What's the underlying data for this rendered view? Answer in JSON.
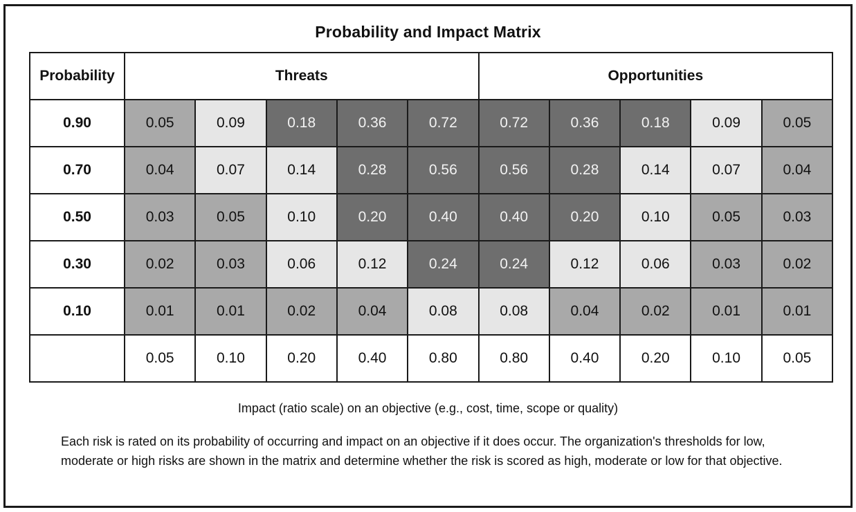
{
  "title": "Probability and Impact Matrix",
  "headers": {
    "probability": "Probability",
    "threats": "Threats",
    "opportunities": "Opportunities"
  },
  "rows": [
    {
      "probability": "0.90",
      "cells": [
        {
          "v": "0.05",
          "level": "moderate"
        },
        {
          "v": "0.09",
          "level": "low"
        },
        {
          "v": "0.18",
          "level": "high"
        },
        {
          "v": "0.36",
          "level": "high"
        },
        {
          "v": "0.72",
          "level": "high"
        },
        {
          "v": "0.72",
          "level": "high"
        },
        {
          "v": "0.36",
          "level": "high"
        },
        {
          "v": "0.18",
          "level": "high"
        },
        {
          "v": "0.09",
          "level": "low"
        },
        {
          "v": "0.05",
          "level": "moderate"
        }
      ]
    },
    {
      "probability": "0.70",
      "cells": [
        {
          "v": "0.04",
          "level": "moderate"
        },
        {
          "v": "0.07",
          "level": "low"
        },
        {
          "v": "0.14",
          "level": "low"
        },
        {
          "v": "0.28",
          "level": "high"
        },
        {
          "v": "0.56",
          "level": "high"
        },
        {
          "v": "0.56",
          "level": "high"
        },
        {
          "v": "0.28",
          "level": "high"
        },
        {
          "v": "0.14",
          "level": "low"
        },
        {
          "v": "0.07",
          "level": "low"
        },
        {
          "v": "0.04",
          "level": "moderate"
        }
      ]
    },
    {
      "probability": "0.50",
      "cells": [
        {
          "v": "0.03",
          "level": "moderate"
        },
        {
          "v": "0.05",
          "level": "moderate"
        },
        {
          "v": "0.10",
          "level": "low"
        },
        {
          "v": "0.20",
          "level": "high"
        },
        {
          "v": "0.40",
          "level": "high"
        },
        {
          "v": "0.40",
          "level": "high"
        },
        {
          "v": "0.20",
          "level": "high"
        },
        {
          "v": "0.10",
          "level": "low"
        },
        {
          "v": "0.05",
          "level": "moderate"
        },
        {
          "v": "0.03",
          "level": "moderate"
        }
      ]
    },
    {
      "probability": "0.30",
      "cells": [
        {
          "v": "0.02",
          "level": "moderate"
        },
        {
          "v": "0.03",
          "level": "moderate"
        },
        {
          "v": "0.06",
          "level": "low"
        },
        {
          "v": "0.12",
          "level": "low"
        },
        {
          "v": "0.24",
          "level": "high"
        },
        {
          "v": "0.24",
          "level": "high"
        },
        {
          "v": "0.12",
          "level": "low"
        },
        {
          "v": "0.06",
          "level": "low"
        },
        {
          "v": "0.03",
          "level": "moderate"
        },
        {
          "v": "0.02",
          "level": "moderate"
        }
      ]
    },
    {
      "probability": "0.10",
      "cells": [
        {
          "v": "0.01",
          "level": "moderate"
        },
        {
          "v": "0.01",
          "level": "moderate"
        },
        {
          "v": "0.02",
          "level": "moderate"
        },
        {
          "v": "0.04",
          "level": "moderate"
        },
        {
          "v": "0.08",
          "level": "low"
        },
        {
          "v": "0.08",
          "level": "low"
        },
        {
          "v": "0.04",
          "level": "moderate"
        },
        {
          "v": "0.02",
          "level": "moderate"
        },
        {
          "v": "0.01",
          "level": "moderate"
        },
        {
          "v": "0.01",
          "level": "moderate"
        }
      ]
    }
  ],
  "impact_values": [
    "0.05",
    "0.10",
    "0.20",
    "0.40",
    "0.80",
    "0.80",
    "0.40",
    "0.20",
    "0.10",
    "0.05"
  ],
  "impact_caption": "Impact (ratio scale) on an objective  (e.g., cost, time, scope or quality)",
  "note": "Each risk is rated on its probability of occurring and impact on an objective if it does occur. The organization's thresholds for low, moderate or high risks are shown in the matrix and determine whether the risk is scored as high, moderate or low for that objective.",
  "colors": {
    "low": "#e6e6e6",
    "moderate": "#a9a9a9",
    "high": "#6e6e6e"
  }
}
